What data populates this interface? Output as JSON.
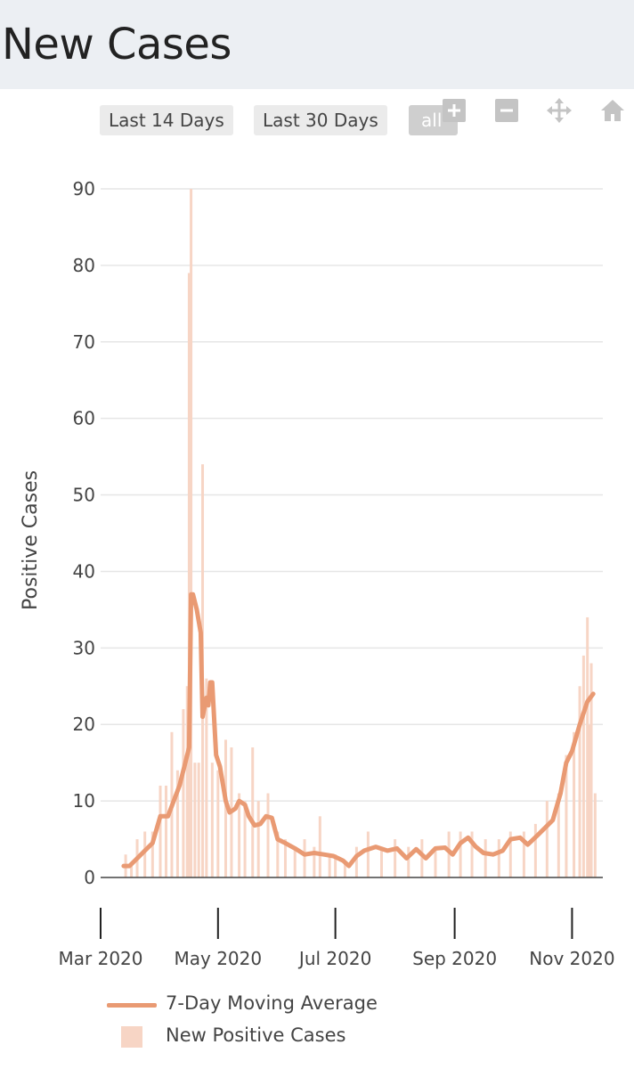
{
  "page": {
    "title": "New Cases"
  },
  "range_buttons": [
    {
      "label": "Last 14 Days",
      "active": false
    },
    {
      "label": "Last 30 Days",
      "active": false
    },
    {
      "label": "all",
      "active": true
    }
  ],
  "modebar": [
    "zoom-in-icon",
    "zoom-out-icon",
    "pan-icon",
    "reset-home-icon"
  ],
  "colors": {
    "line": "#e99a73",
    "bars": "#f7d5c5",
    "grid": "#e6e6e6",
    "header_bg": "#eceff3"
  },
  "chart_data": {
    "type": "bar",
    "title": "",
    "xlabel": "",
    "ylabel": "Positive Cases",
    "ylim": [
      0,
      90
    ],
    "yticks": [
      0,
      10,
      20,
      30,
      40,
      50,
      60,
      70,
      80,
      90
    ],
    "xticks": [
      "Mar 2020",
      "May 2020",
      "Jul 2020",
      "Sep 2020",
      "Nov 2020"
    ],
    "xlim": [
      "2020-03-01",
      "2020-11-17"
    ],
    "grid": true,
    "legend_position": "bottom",
    "series": [
      {
        "name": "7-Day Moving Average",
        "type": "line",
        "color": "#e99a73",
        "points": [
          [
            "2020-03-13",
            1.5
          ],
          [
            "2020-03-16",
            1.5
          ],
          [
            "2020-03-20",
            2.5
          ],
          [
            "2020-03-24",
            3.5
          ],
          [
            "2020-03-28",
            4.5
          ],
          [
            "2020-04-01",
            8
          ],
          [
            "2020-04-05",
            8
          ],
          [
            "2020-04-08",
            10
          ],
          [
            "2020-04-11",
            12
          ],
          [
            "2020-04-14",
            15
          ],
          [
            "2020-04-16",
            17
          ],
          [
            "2020-04-17",
            37
          ],
          [
            "2020-04-18",
            37
          ],
          [
            "2020-04-20",
            35
          ],
          [
            "2020-04-22",
            32
          ],
          [
            "2020-04-23",
            21
          ],
          [
            "2020-04-25",
            23.5
          ],
          [
            "2020-04-26",
            22.5
          ],
          [
            "2020-04-27",
            25.5
          ],
          [
            "2020-04-28",
            25.5
          ],
          [
            "2020-04-30",
            16
          ],
          [
            "2020-05-02",
            14.5
          ],
          [
            "2020-05-05",
            10
          ],
          [
            "2020-05-07",
            8.5
          ],
          [
            "2020-05-10",
            9
          ],
          [
            "2020-05-12",
            10
          ],
          [
            "2020-05-15",
            9.5
          ],
          [
            "2020-05-17",
            8
          ],
          [
            "2020-05-20",
            6.8
          ],
          [
            "2020-05-23",
            7
          ],
          [
            "2020-05-26",
            8
          ],
          [
            "2020-05-29",
            7.8
          ],
          [
            "2020-06-01",
            5
          ],
          [
            "2020-06-05",
            4.5
          ],
          [
            "2020-06-10",
            3.8
          ],
          [
            "2020-06-15",
            3
          ],
          [
            "2020-06-20",
            3.2
          ],
          [
            "2020-06-25",
            3
          ],
          [
            "2020-06-30",
            2.8
          ],
          [
            "2020-07-05",
            2.2
          ],
          [
            "2020-07-08",
            1.5
          ],
          [
            "2020-07-12",
            2.8
          ],
          [
            "2020-07-16",
            3.5
          ],
          [
            "2020-07-22",
            4
          ],
          [
            "2020-07-28",
            3.5
          ],
          [
            "2020-08-02",
            3.8
          ],
          [
            "2020-08-07",
            2.5
          ],
          [
            "2020-08-12",
            3.7
          ],
          [
            "2020-08-17",
            2.5
          ],
          [
            "2020-08-22",
            3.8
          ],
          [
            "2020-08-27",
            3.9
          ],
          [
            "2020-08-31",
            3
          ],
          [
            "2020-09-04",
            4.5
          ],
          [
            "2020-09-08",
            5.2
          ],
          [
            "2020-09-12",
            4
          ],
          [
            "2020-09-16",
            3.2
          ],
          [
            "2020-09-21",
            3
          ],
          [
            "2020-09-26",
            3.5
          ],
          [
            "2020-09-30",
            5
          ],
          [
            "2020-10-05",
            5.2
          ],
          [
            "2020-10-09",
            4.3
          ],
          [
            "2020-10-14",
            5.5
          ],
          [
            "2020-10-18",
            6.5
          ],
          [
            "2020-10-22",
            7.5
          ],
          [
            "2020-10-26",
            11
          ],
          [
            "2020-10-29",
            15
          ],
          [
            "2020-11-01",
            16.5
          ],
          [
            "2020-11-05",
            20
          ],
          [
            "2020-11-09",
            23
          ],
          [
            "2020-11-12",
            24
          ]
        ]
      },
      {
        "name": "New Positive Cases",
        "type": "bar",
        "color": "#f7d5c5",
        "points": [
          [
            "2020-03-14",
            3
          ],
          [
            "2020-03-17",
            2
          ],
          [
            "2020-03-20",
            5
          ],
          [
            "2020-03-24",
            6
          ],
          [
            "2020-03-28",
            6
          ],
          [
            "2020-04-01",
            12
          ],
          [
            "2020-04-04",
            12
          ],
          [
            "2020-04-07",
            19
          ],
          [
            "2020-04-10",
            14
          ],
          [
            "2020-04-13",
            22
          ],
          [
            "2020-04-15",
            25
          ],
          [
            "2020-04-16",
            79
          ],
          [
            "2020-04-17",
            90
          ],
          [
            "2020-04-19",
            15
          ],
          [
            "2020-04-21",
            15
          ],
          [
            "2020-04-23",
            54
          ],
          [
            "2020-04-25",
            26
          ],
          [
            "2020-04-28",
            15
          ],
          [
            "2020-05-01",
            14
          ],
          [
            "2020-05-05",
            18
          ],
          [
            "2020-05-08",
            17
          ],
          [
            "2020-05-12",
            11
          ],
          [
            "2020-05-15",
            10
          ],
          [
            "2020-05-19",
            17
          ],
          [
            "2020-05-22",
            10
          ],
          [
            "2020-05-27",
            11
          ],
          [
            "2020-06-01",
            6
          ],
          [
            "2020-06-05",
            5
          ],
          [
            "2020-06-10",
            4
          ],
          [
            "2020-06-15",
            5
          ],
          [
            "2020-06-20",
            4
          ],
          [
            "2020-06-23",
            8
          ],
          [
            "2020-06-28",
            3
          ],
          [
            "2020-07-01",
            3
          ],
          [
            "2020-07-06",
            2
          ],
          [
            "2020-07-12",
            4
          ],
          [
            "2020-07-18",
            6
          ],
          [
            "2020-07-25",
            4
          ],
          [
            "2020-08-01",
            5
          ],
          [
            "2020-08-08",
            4
          ],
          [
            "2020-08-15",
            5
          ],
          [
            "2020-08-22",
            4
          ],
          [
            "2020-08-29",
            6
          ],
          [
            "2020-09-04",
            6
          ],
          [
            "2020-09-10",
            6
          ],
          [
            "2020-09-17",
            5
          ],
          [
            "2020-09-24",
            5
          ],
          [
            "2020-09-30",
            6
          ],
          [
            "2020-10-07",
            6
          ],
          [
            "2020-10-13",
            7
          ],
          [
            "2020-10-19",
            10
          ],
          [
            "2020-10-25",
            11
          ],
          [
            "2020-10-29",
            16
          ],
          [
            "2020-11-02",
            19
          ],
          [
            "2020-11-05",
            25
          ],
          [
            "2020-11-07",
            29
          ],
          [
            "2020-11-09",
            34
          ],
          [
            "2020-11-10",
            20
          ],
          [
            "2020-11-11",
            28
          ],
          [
            "2020-11-13",
            11
          ]
        ]
      }
    ]
  }
}
